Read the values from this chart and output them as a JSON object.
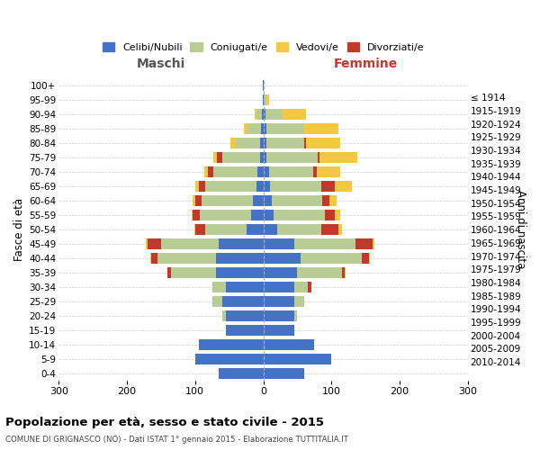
{
  "age_groups": [
    "0-4",
    "5-9",
    "10-14",
    "15-19",
    "20-24",
    "25-29",
    "30-34",
    "35-39",
    "40-44",
    "45-49",
    "50-54",
    "55-59",
    "60-64",
    "65-69",
    "70-74",
    "75-79",
    "80-84",
    "85-89",
    "90-94",
    "95-99",
    "100+"
  ],
  "birth_years": [
    "2010-2014",
    "2005-2009",
    "2000-2004",
    "1995-1999",
    "1990-1994",
    "1985-1989",
    "1980-1984",
    "1975-1979",
    "1970-1974",
    "1965-1969",
    "1960-1964",
    "1955-1959",
    "1950-1954",
    "1945-1949",
    "1940-1944",
    "1935-1939",
    "1930-1934",
    "1925-1929",
    "1920-1924",
    "1915-1919",
    "≤ 1914"
  ],
  "colors": {
    "celibi": "#4472C4",
    "coniugati": "#B8CC96",
    "vedovi": "#F5C842",
    "divorziati": "#C0392B"
  },
  "males": {
    "celibi": [
      65,
      100,
      95,
      55,
      55,
      60,
      55,
      70,
      70,
      65,
      25,
      18,
      15,
      10,
      8,
      5,
      5,
      3,
      2,
      1,
      1
    ],
    "coniugati": [
      0,
      0,
      0,
      0,
      5,
      15,
      20,
      65,
      85,
      85,
      60,
      75,
      75,
      75,
      65,
      55,
      35,
      20,
      8,
      0,
      0
    ],
    "vedovi": [
      0,
      0,
      0,
      0,
      0,
      0,
      0,
      0,
      1,
      2,
      1,
      2,
      3,
      5,
      5,
      5,
      8,
      5,
      2,
      0,
      0
    ],
    "divorziati": [
      0,
      0,
      0,
      0,
      0,
      0,
      0,
      5,
      10,
      20,
      15,
      10,
      10,
      10,
      8,
      8,
      0,
      0,
      0,
      0,
      0
    ]
  },
  "females": {
    "nubili": [
      60,
      100,
      75,
      45,
      45,
      45,
      45,
      50,
      55,
      45,
      20,
      15,
      12,
      10,
      8,
      5,
      5,
      5,
      3,
      1,
      1
    ],
    "coniugate": [
      0,
      0,
      0,
      0,
      5,
      15,
      20,
      65,
      90,
      90,
      65,
      75,
      75,
      75,
      65,
      75,
      55,
      55,
      25,
      3,
      0
    ],
    "vedove": [
      0,
      0,
      0,
      0,
      0,
      0,
      0,
      1,
      1,
      3,
      5,
      8,
      10,
      25,
      35,
      55,
      50,
      50,
      35,
      5,
      0
    ],
    "divorziate": [
      0,
      0,
      0,
      0,
      0,
      0,
      5,
      5,
      10,
      25,
      25,
      15,
      10,
      20,
      5,
      3,
      3,
      0,
      0,
      0,
      0
    ]
  },
  "title": "Popolazione per età, sesso e stato civile - 2015",
  "subtitle": "COMUNE DI GRIGNASCO (NO) - Dati ISTAT 1° gennaio 2015 - Elaborazione TUTTITALIA.IT",
  "ylabel_left": "Fasce di età",
  "ylabel_right": "Anni di nascita",
  "xlabel_left": "Maschi",
  "xlabel_right": "Femmine",
  "xlim": 300,
  "legend_labels": [
    "Celibi/Nubili",
    "Coniugati/e",
    "Vedovi/e",
    "Divorziati/e"
  ],
  "bg_color": "#FFFFFF",
  "grid_color": "#CCCCCC"
}
